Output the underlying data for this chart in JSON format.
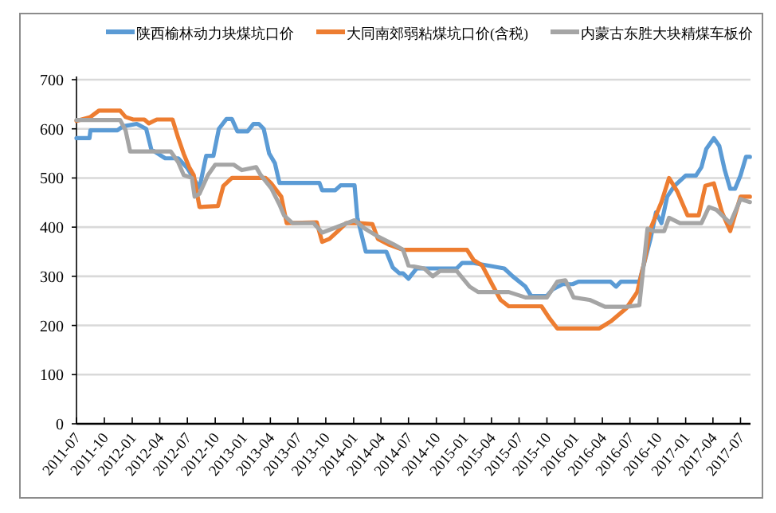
{
  "chart_data": {
    "type": "line",
    "xlim": [
      "2011-07",
      "2017-08-03"
    ],
    "xticks": [
      "2011-07",
      "2011-10",
      "2012-01",
      "2012-04",
      "2012-07",
      "2012-10",
      "2013-01",
      "2013-04",
      "2013-07",
      "2013-10",
      "2014-01",
      "2014-04",
      "2014-07",
      "2014-10",
      "2015-01",
      "2015-04",
      "2015-07",
      "2015-10",
      "2016-01",
      "2016-04",
      "2016-07",
      "2016-10",
      "2017-01",
      "2017-04",
      "2017-07"
    ],
    "ylim": [
      0,
      700
    ],
    "yticks": [
      0,
      100,
      200,
      300,
      400,
      500,
      600,
      700
    ],
    "grid": "y",
    "legend": "top",
    "marker": "none",
    "line_style": "solid",
    "series": [
      {
        "name": "陕西榆林动力块煤坑口价",
        "color": "#5b9bd5",
        "x": [
          "2011-07-01",
          "2011-08-13",
          "2011-08-16",
          "2011-11-13",
          "2011-12-01",
          "2012-01-16",
          "2012-02-16",
          "2012-03-04",
          "2012-04-19",
          "2012-06-01",
          "2012-07-01",
          "2012-08-10",
          "2012-09-01",
          "2012-09-25",
          "2012-10-13",
          "2012-11-07",
          "2012-11-25",
          "2012-12-13",
          "2013-01-16",
          "2013-02-04",
          "2013-02-22",
          "2013-03-10",
          "2013-03-28",
          "2013-04-16",
          "2013-05-01",
          "2013-09-10",
          "2013-09-19",
          "2013-11-01",
          "2013-11-19",
          "2014-01-04",
          "2014-01-13",
          "2014-02-10",
          "2014-04-19",
          "2014-05-10",
          "2014-06-01",
          "2014-06-13",
          "2014-07-01",
          "2014-07-28",
          "2014-10-01",
          "2014-12-07",
          "2014-12-25",
          "2015-02-01",
          "2015-03-19",
          "2015-05-13",
          "2015-06-10",
          "2015-07-22",
          "2015-08-10",
          "2015-10-01",
          "2015-10-19",
          "2015-11-22",
          "2015-12-25",
          "2016-01-13",
          "2016-04-28",
          "2016-05-16",
          "2016-06-01",
          "2016-08-01",
          "2016-09-07",
          "2016-09-25",
          "2016-10-13",
          "2016-11-01",
          "2016-11-25",
          "2017-01-01",
          "2017-02-04",
          "2017-02-22",
          "2017-03-10",
          "2017-04-04",
          "2017-04-22",
          "2017-05-10",
          "2017-05-28",
          "2017-06-13",
          "2017-07-01",
          "2017-07-19",
          "2017-08-01"
        ],
        "values": [
          581,
          581,
          597,
          597,
          605,
          610,
          600,
          558,
          540,
          540,
          520,
          480,
          545,
          545,
          600,
          620,
          620,
          595,
          595,
          610,
          610,
          600,
          550,
          530,
          490,
          490,
          475,
          475,
          485,
          485,
          420,
          350,
          350,
          318,
          306,
          306,
          295,
          316,
          316,
          316,
          327,
          327,
          322,
          316,
          300,
          279,
          260,
          260,
          273,
          284,
          284,
          289,
          289,
          279,
          289,
          289,
          376,
          430,
          408,
          462,
          484,
          505,
          505,
          522,
          559,
          581,
          565,
          516,
          478,
          478,
          505,
          543,
          543
        ]
      },
      {
        "name": "大同南郊弱粘煤坑口价(含税)",
        "color": "#ed7d31",
        "x": [
          "2011-07-01",
          "2011-08-16",
          "2011-09-13",
          "2011-11-22",
          "2011-12-10",
          "2012-01-04",
          "2012-02-10",
          "2012-02-25",
          "2012-03-22",
          "2012-05-13",
          "2012-06-01",
          "2012-06-19",
          "2012-07-07",
          "2012-07-22",
          "2012-08-10",
          "2012-10-10",
          "2012-10-28",
          "2012-11-25",
          "2013-03-16",
          "2013-04-04",
          "2013-05-07",
          "2013-05-25",
          "2013-09-01",
          "2013-09-19",
          "2013-10-13",
          "2013-11-10",
          "2013-12-07",
          "2014-01-19",
          "2014-03-04",
          "2014-03-22",
          "2014-04-25",
          "2014-06-13",
          "2015-01-10",
          "2015-02-01",
          "2015-03-01",
          "2015-04-07",
          "2015-05-01",
          "2015-05-28",
          "2015-09-13",
          "2015-10-10",
          "2015-11-04",
          "2016-03-22",
          "2016-04-28",
          "2016-06-19",
          "2016-07-25",
          "2016-08-19",
          "2016-09-07",
          "2016-10-13",
          "2016-11-07",
          "2016-12-04",
          "2017-01-07",
          "2017-02-13",
          "2017-03-07",
          "2017-04-04",
          "2017-05-01",
          "2017-05-28",
          "2017-07-01",
          "2017-08-01"
        ],
        "values": [
          616,
          624,
          637,
          637,
          624,
          619,
          619,
          611,
          619,
          619,
          581,
          549,
          522,
          506,
          441,
          443,
          484,
          500,
          500,
          489,
          462,
          408,
          410,
          370,
          376,
          392,
          408,
          408,
          406,
          376,
          365,
          354,
          354,
          333,
          322,
          279,
          252,
          239,
          239,
          214,
          194,
          194,
          208,
          235,
          268,
          333,
          397,
          451,
          500,
          473,
          424,
          424,
          484,
          489,
          430,
          392,
          462,
          462
        ]
      },
      {
        "name": "内蒙古东胜大块精煤车板价",
        "color": "#a5a5a5",
        "x": [
          "2011-07-01",
          "2011-11-22",
          "2011-12-10",
          "2011-12-25",
          "2012-05-07",
          "2012-06-01",
          "2012-06-19",
          "2012-07-16",
          "2012-07-25",
          "2012-08-10",
          "2012-09-07",
          "2012-10-01",
          "2012-12-01",
          "2012-12-28",
          "2013-02-13",
          "2013-02-28",
          "2013-04-04",
          "2013-05-01",
          "2013-05-16",
          "2013-06-13",
          "2013-08-22",
          "2013-09-19",
          "2013-11-19",
          "2014-01-04",
          "2014-02-07",
          "2014-03-22",
          "2014-05-13",
          "2014-06-13",
          "2014-07-01",
          "2014-08-22",
          "2014-09-19",
          "2014-10-13",
          "2014-12-07",
          "2015-01-19",
          "2015-02-16",
          "2015-05-28",
          "2015-07-22",
          "2015-10-01",
          "2015-11-04",
          "2015-12-01",
          "2015-12-28",
          "2016-02-19",
          "2016-04-10",
          "2016-06-19",
          "2016-08-01",
          "2016-08-28",
          "2016-09-16",
          "2016-10-22",
          "2016-11-07",
          "2016-12-13",
          "2017-02-22",
          "2017-03-19",
          "2017-04-13",
          "2017-05-28",
          "2017-07-01",
          "2017-08-01"
        ],
        "values": [
          618,
          618,
          597,
          554,
          554,
          532,
          506,
          500,
          462,
          468,
          506,
          527,
          527,
          516,
          522,
          506,
          479,
          446,
          424,
          408,
          408,
          389,
          403,
          414,
          397,
          381,
          365,
          354,
          322,
          316,
          300,
          311,
          311,
          279,
          268,
          268,
          257,
          257,
          289,
          292,
          257,
          252,
          238,
          238,
          241,
          397,
          392,
          392,
          419,
          408,
          408,
          441,
          435,
          408,
          457,
          451
        ]
      }
    ]
  }
}
